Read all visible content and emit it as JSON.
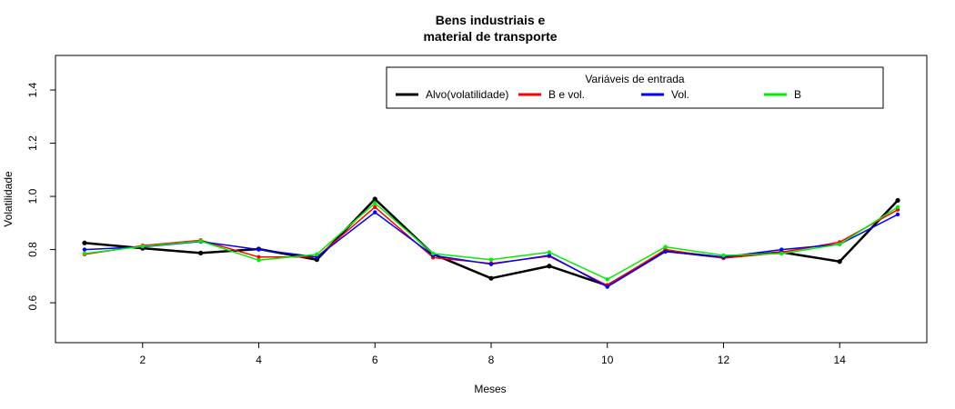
{
  "chart_data": {
    "type": "line",
    "title_lines": [
      "Bens industriais e",
      "material de transporte"
    ],
    "xlabel": "Meses",
    "ylabel": "Volatilidade",
    "xlim": [
      0.5,
      15.5
    ],
    "ylim": [
      0.45,
      1.53
    ],
    "x_ticks": [
      2,
      4,
      6,
      8,
      10,
      12,
      14
    ],
    "y_ticks": [
      0.6,
      0.8,
      1.0,
      1.2,
      1.4
    ],
    "y_tick_labels": [
      "0.6",
      "0.8",
      "1.0",
      "1.2",
      "1.4"
    ],
    "grid": false,
    "x": [
      1,
      2,
      3,
      4,
      5,
      6,
      7,
      8,
      9,
      10,
      11,
      12,
      13,
      14,
      15
    ],
    "legend": {
      "title": "Variáveis de entrada",
      "placement": "top-right"
    },
    "series": [
      {
        "name": "Alvo(volatilidade)",
        "color": "#000000",
        "values": [
          0.825,
          0.805,
          0.787,
          0.802,
          0.762,
          0.99,
          0.783,
          0.692,
          0.738,
          0.665,
          0.795,
          0.77,
          0.79,
          0.755,
          0.985
        ]
      },
      {
        "name": "B e vol.",
        "color": "#ff0000",
        "values": [
          0.782,
          0.815,
          0.835,
          0.772,
          0.772,
          0.96,
          0.77,
          0.748,
          0.775,
          0.665,
          0.8,
          0.768,
          0.79,
          0.828,
          0.95
        ]
      },
      {
        "name": "Vol.",
        "color": "#0000ff",
        "values": [
          0.8,
          0.81,
          0.83,
          0.8,
          0.772,
          0.94,
          0.778,
          0.745,
          0.778,
          0.66,
          0.792,
          0.772,
          0.8,
          0.82,
          0.932
        ]
      },
      {
        "name": "B",
        "color": "#00ee00",
        "values": [
          0.785,
          0.812,
          0.832,
          0.76,
          0.782,
          0.975,
          0.785,
          0.762,
          0.79,
          0.688,
          0.81,
          0.778,
          0.785,
          0.82,
          0.96
        ]
      }
    ]
  }
}
